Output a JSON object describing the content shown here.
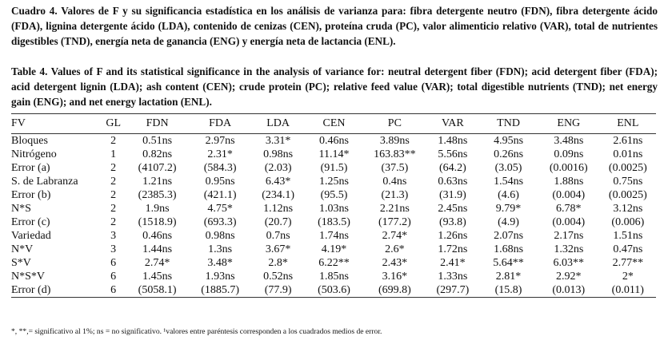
{
  "caption_es": "Cuadro 4. Valores de F y su significancia estadística en los análisis de varianza para: fibra detergente neutro (FDN), fibra detergente ácido (FDA), lignina detergente ácido (LDA), contenido de cenizas (CEN), proteína cruda (PC), valor alimenticio relativo (VAR), total de nutrientes digestibles (TND), energía neta de ganancia (ENG) y energía neta de lactancia (ENL).",
  "caption_en": "Table 4. Values of F and its statistical significance in the analysis of variance for: neutral detergent fiber (FDN); acid detergent fiber (FDA); acid detergent lignin (LDA); ash content (CEN); crude protein (PC); relative feed value (VAR); total digestible nutrients (TND); net energy gain (ENG); and net energy lactation (ENL).",
  "table": {
    "headers": [
      "FV",
      "GL",
      "FDN",
      "FDA",
      "LDA",
      "CEN",
      "PC",
      "VAR",
      "TND",
      "ENG",
      "ENL"
    ],
    "rows": [
      [
        "Bloques",
        "2",
        "0.51ns",
        "2.97ns",
        "3.31*",
        "0.46ns",
        "3.89ns",
        "1.48ns",
        "4.95ns",
        "3.48ns",
        "2.61ns"
      ],
      [
        "Nitrógeno",
        "1",
        "0.82ns",
        "2.31*",
        "0.98ns",
        "11.14*",
        "163.83**",
        "5.56ns",
        "0.26ns",
        "0.09ns",
        "0.01ns"
      ],
      [
        "Error (a)",
        "2",
        "(4107.2)",
        "(584.3)",
        "(2.03)",
        "(91.5)",
        "(37.5)",
        "(64.2)",
        "(3.05)",
        "(0.0016)",
        "(0.0025)"
      ],
      [
        "S. de Labranza",
        "2",
        "1.21ns",
        "0.95ns",
        "6.43*",
        "1.25ns",
        "0.4ns",
        "0.63ns",
        "1.54ns",
        "1.88ns",
        "0.75ns"
      ],
      [
        "Error (b)",
        "2",
        "(2385.3)",
        "(421.1)",
        "(234.1)",
        "(95.5)",
        "(21.3)",
        "(31.9)",
        "(4.6)",
        "(0.004)",
        "(0.0025)"
      ],
      [
        "N*S",
        "2",
        "1.9ns",
        "4.75*",
        "1.12ns",
        "1.03ns",
        "2.21ns",
        "2.45ns",
        "9.79*",
        "6.78*",
        "3.12ns"
      ],
      [
        "Error (c)",
        "2",
        "(1518.9)",
        "(693.3)",
        "(20.7)",
        "(183.5)",
        "(177.2)",
        "(93.8)",
        "(4.9)",
        "(0.004)",
        "(0.006)"
      ],
      [
        "Variedad",
        "3",
        "0.46ns",
        "0.98ns",
        "0.7ns",
        "1.74ns",
        "2.74*",
        "1.26ns",
        "2.07ns",
        "2.17ns",
        "1.51ns"
      ],
      [
        "N*V",
        "3",
        "1.44ns",
        "1.3ns",
        "3.67*",
        "4.19*",
        "2.6*",
        "1.72ns",
        "1.68ns",
        "1.32ns",
        "0.47ns"
      ],
      [
        "S*V",
        "6",
        "2.74*",
        "3.48*",
        "2.8*",
        "6.22**",
        "2.43*",
        "2.41*",
        "5.64**",
        "6.03**",
        "2.77**"
      ],
      [
        "N*S*V",
        "6",
        "1.45ns",
        "1.93ns",
        "0.52ns",
        "1.85ns",
        "3.16*",
        "1.33ns",
        "2.81*",
        "2.92*",
        "2*"
      ],
      [
        "Error (d)",
        "6",
        "(5058.1)",
        "(1885.7)",
        "(77.9)",
        "(503.6)",
        "(699.8)",
        "(297.7)",
        "(15.8)",
        "(0.013)",
        "(0.011)"
      ]
    ]
  },
  "footnote": "*, **,= significativo al 1%; ns = no significativo. ¹valores entre paréntesis corresponden a los cuadrados medios de error."
}
